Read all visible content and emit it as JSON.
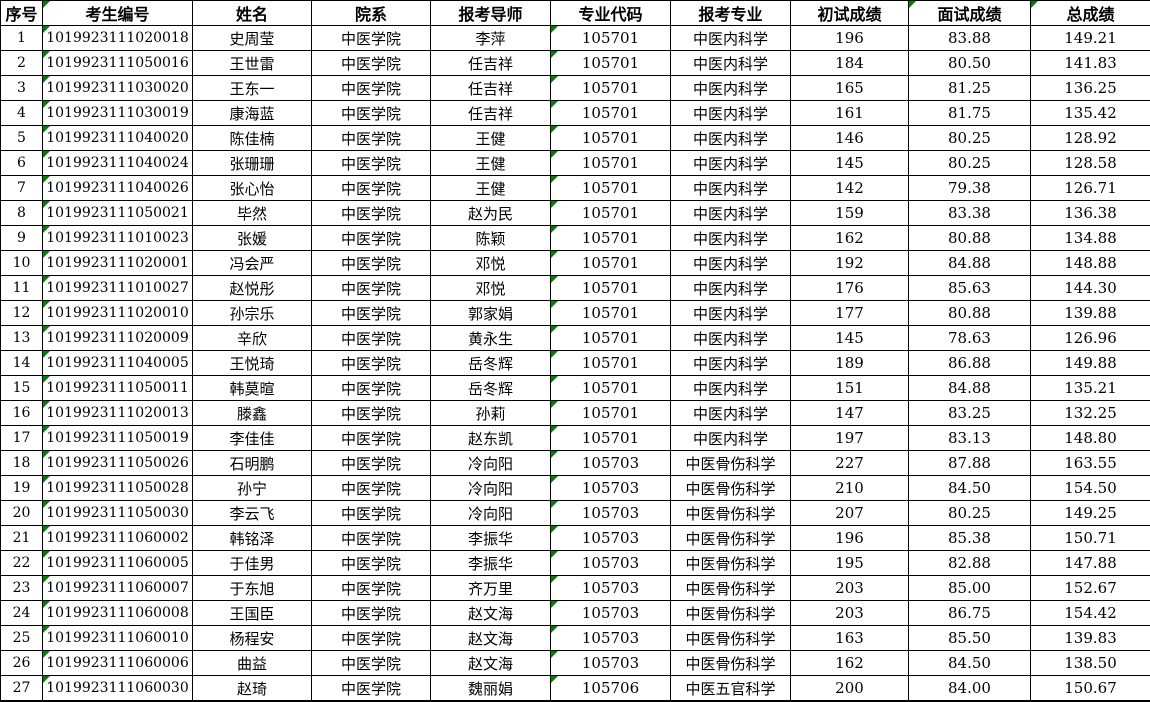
{
  "page": {
    "background_color": "#ffffff",
    "grid_line_color": "#000000",
    "error_marker_color": "#008000"
  },
  "table": {
    "columns": [
      {
        "key": "index",
        "label": "序号"
      },
      {
        "key": "candidate_id",
        "label": "考生编号"
      },
      {
        "key": "name",
        "label": "姓名"
      },
      {
        "key": "department",
        "label": "院系"
      },
      {
        "key": "advisor",
        "label": "报考导师"
      },
      {
        "key": "major_code",
        "label": "专业代码"
      },
      {
        "key": "major",
        "label": "报考专业"
      },
      {
        "key": "initial_score",
        "label": "初试成绩"
      },
      {
        "key": "interview_score",
        "label": "面试成绩"
      },
      {
        "key": "total_score",
        "label": "总成绩"
      }
    ],
    "data_marker_columns": [
      "candidate_id",
      "major_code"
    ],
    "header_marker_columns": [
      "candidate_id",
      "interview_score",
      "total_score"
    ],
    "rows": [
      {
        "index": "1",
        "candidate_id": "1019923111020018",
        "name": "史周莹",
        "department": "中医学院",
        "advisor": "李萍",
        "major_code": "105701",
        "major": "中医内科学",
        "initial_score": "196",
        "interview_score": "83.88",
        "total_score": "149.21"
      },
      {
        "index": "2",
        "candidate_id": "1019923111050016",
        "name": "王世雷",
        "department": "中医学院",
        "advisor": "任吉祥",
        "major_code": "105701",
        "major": "中医内科学",
        "initial_score": "184",
        "interview_score": "80.50",
        "total_score": "141.83"
      },
      {
        "index": "3",
        "candidate_id": "1019923111030020",
        "name": "王东一",
        "department": "中医学院",
        "advisor": "任吉祥",
        "major_code": "105701",
        "major": "中医内科学",
        "initial_score": "165",
        "interview_score": "81.25",
        "total_score": "136.25"
      },
      {
        "index": "4",
        "candidate_id": "1019923111030019",
        "name": "康海蓝",
        "department": "中医学院",
        "advisor": "任吉祥",
        "major_code": "105701",
        "major": "中医内科学",
        "initial_score": "161",
        "interview_score": "81.75",
        "total_score": "135.42"
      },
      {
        "index": "5",
        "candidate_id": "1019923111040020",
        "name": "陈佳楠",
        "department": "中医学院",
        "advisor": "王健",
        "major_code": "105701",
        "major": "中医内科学",
        "initial_score": "146",
        "interview_score": "80.25",
        "total_score": "128.92"
      },
      {
        "index": "6",
        "candidate_id": "1019923111040024",
        "name": "张珊珊",
        "department": "中医学院",
        "advisor": "王健",
        "major_code": "105701",
        "major": "中医内科学",
        "initial_score": "145",
        "interview_score": "80.25",
        "total_score": "128.58"
      },
      {
        "index": "7",
        "candidate_id": "1019923111040026",
        "name": "张心怡",
        "department": "中医学院",
        "advisor": "王健",
        "major_code": "105701",
        "major": "中医内科学",
        "initial_score": "142",
        "interview_score": "79.38",
        "total_score": "126.71"
      },
      {
        "index": "8",
        "candidate_id": "1019923111050021",
        "name": "毕然",
        "department": "中医学院",
        "advisor": "赵为民",
        "major_code": "105701",
        "major": "中医内科学",
        "initial_score": "159",
        "interview_score": "83.38",
        "total_score": "136.38"
      },
      {
        "index": "9",
        "candidate_id": "1019923111010023",
        "name": "张媛",
        "department": "中医学院",
        "advisor": "陈颖",
        "major_code": "105701",
        "major": "中医内科学",
        "initial_score": "162",
        "interview_score": "80.88",
        "total_score": "134.88"
      },
      {
        "index": "10",
        "candidate_id": "1019923111020001",
        "name": "冯会严",
        "department": "中医学院",
        "advisor": "邓悦",
        "major_code": "105701",
        "major": "中医内科学",
        "initial_score": "192",
        "interview_score": "84.88",
        "total_score": "148.88"
      },
      {
        "index": "11",
        "candidate_id": "1019923111010027",
        "name": "赵悦彤",
        "department": "中医学院",
        "advisor": "邓悦",
        "major_code": "105701",
        "major": "中医内科学",
        "initial_score": "176",
        "interview_score": "85.63",
        "total_score": "144.30"
      },
      {
        "index": "12",
        "candidate_id": "1019923111020010",
        "name": "孙宗乐",
        "department": "中医学院",
        "advisor": "郭家娟",
        "major_code": "105701",
        "major": "中医内科学",
        "initial_score": "177",
        "interview_score": "80.88",
        "total_score": "139.88"
      },
      {
        "index": "13",
        "candidate_id": "1019923111020009",
        "name": "辛欣",
        "department": "中医学院",
        "advisor": "黄永生",
        "major_code": "105701",
        "major": "中医内科学",
        "initial_score": "145",
        "interview_score": "78.63",
        "total_score": "126.96"
      },
      {
        "index": "14",
        "candidate_id": "1019923111040005",
        "name": "王悦琦",
        "department": "中医学院",
        "advisor": "岳冬辉",
        "major_code": "105701",
        "major": "中医内科学",
        "initial_score": "189",
        "interview_score": "86.88",
        "total_score": "149.88"
      },
      {
        "index": "15",
        "candidate_id": "1019923111050011",
        "name": "韩莫暄",
        "department": "中医学院",
        "advisor": "岳冬辉",
        "major_code": "105701",
        "major": "中医内科学",
        "initial_score": "151",
        "interview_score": "84.88",
        "total_score": "135.21"
      },
      {
        "index": "16",
        "candidate_id": "1019923111020013",
        "name": "滕鑫",
        "department": "中医学院",
        "advisor": "孙莉",
        "major_code": "105701",
        "major": "中医内科学",
        "initial_score": "147",
        "interview_score": "83.25",
        "total_score": "132.25"
      },
      {
        "index": "17",
        "candidate_id": "1019923111050019",
        "name": "李佳佳",
        "department": "中医学院",
        "advisor": "赵东凯",
        "major_code": "105701",
        "major": "中医内科学",
        "initial_score": "197",
        "interview_score": "83.13",
        "total_score": "148.80"
      },
      {
        "index": "18",
        "candidate_id": "1019923111050026",
        "name": "石明鹏",
        "department": "中医学院",
        "advisor": "冷向阳",
        "major_code": "105703",
        "major": "中医骨伤科学",
        "initial_score": "227",
        "interview_score": "87.88",
        "total_score": "163.55"
      },
      {
        "index": "19",
        "candidate_id": "1019923111050028",
        "name": "孙宁",
        "department": "中医学院",
        "advisor": "冷向阳",
        "major_code": "105703",
        "major": "中医骨伤科学",
        "initial_score": "210",
        "interview_score": "84.50",
        "total_score": "154.50"
      },
      {
        "index": "20",
        "candidate_id": "1019923111050030",
        "name": "李云飞",
        "department": "中医学院",
        "advisor": "冷向阳",
        "major_code": "105703",
        "major": "中医骨伤科学",
        "initial_score": "207",
        "interview_score": "80.25",
        "total_score": "149.25"
      },
      {
        "index": "21",
        "candidate_id": "1019923111060002",
        "name": "韩铭泽",
        "department": "中医学院",
        "advisor": "李振华",
        "major_code": "105703",
        "major": "中医骨伤科学",
        "initial_score": "196",
        "interview_score": "85.38",
        "total_score": "150.71"
      },
      {
        "index": "22",
        "candidate_id": "1019923111060005",
        "name": "于佳男",
        "department": "中医学院",
        "advisor": "李振华",
        "major_code": "105703",
        "major": "中医骨伤科学",
        "initial_score": "195",
        "interview_score": "82.88",
        "total_score": "147.88"
      },
      {
        "index": "23",
        "candidate_id": "1019923111060007",
        "name": "于东旭",
        "department": "中医学院",
        "advisor": "齐万里",
        "major_code": "105703",
        "major": "中医骨伤科学",
        "initial_score": "203",
        "interview_score": "85.00",
        "total_score": "152.67"
      },
      {
        "index": "24",
        "candidate_id": "1019923111060008",
        "name": "王国臣",
        "department": "中医学院",
        "advisor": "赵文海",
        "major_code": "105703",
        "major": "中医骨伤科学",
        "initial_score": "203",
        "interview_score": "86.75",
        "total_score": "154.42"
      },
      {
        "index": "25",
        "candidate_id": "1019923111060010",
        "name": "杨程安",
        "department": "中医学院",
        "advisor": "赵文海",
        "major_code": "105703",
        "major": "中医骨伤科学",
        "initial_score": "163",
        "interview_score": "85.50",
        "total_score": "139.83"
      },
      {
        "index": "26",
        "candidate_id": "1019923111060006",
        "name": "曲益",
        "department": "中医学院",
        "advisor": "赵文海",
        "major_code": "105703",
        "major": "中医骨伤科学",
        "initial_score": "162",
        "interview_score": "84.50",
        "total_score": "138.50"
      },
      {
        "index": "27",
        "candidate_id": "1019923111060030",
        "name": "赵琦",
        "department": "中医学院",
        "advisor": "魏丽娟",
        "major_code": "105706",
        "major": "中医五官科学",
        "initial_score": "200",
        "interview_score": "84.00",
        "total_score": "150.67"
      }
    ]
  }
}
